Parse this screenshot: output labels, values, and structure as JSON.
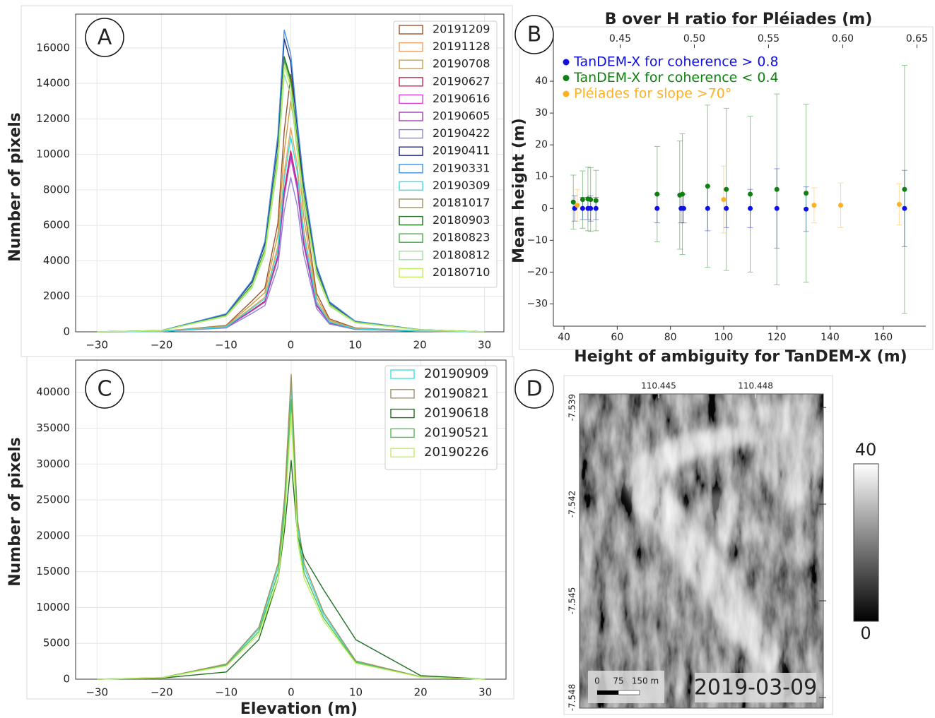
{
  "chart_data": [
    {
      "type": "line",
      "label": "A",
      "ylabel": "Number of pixels",
      "xlim": [
        -33.3,
        33
      ],
      "ylim": [
        0,
        17900
      ],
      "xticks": [
        {
          "value": -30,
          "label": "−30"
        },
        {
          "value": -20,
          "label": "−20"
        },
        {
          "value": -10,
          "label": "−10"
        },
        0,
        10,
        20,
        30
      ],
      "yticks": [
        0,
        2000,
        4000,
        6000,
        8000,
        10000,
        12000,
        14000,
        16000
      ],
      "grid": true,
      "legend": "upper right",
      "x": [
        -30,
        -20,
        -10,
        -6,
        -4,
        -2,
        -1,
        0,
        1,
        2,
        4,
        6,
        10,
        20,
        30
      ],
      "series": [
        {
          "name": "20191209",
          "color": "#a0522d",
          "values": [
            0,
            30,
            360,
            1740,
            2470,
            6090,
            11310,
            14500,
            11890,
            7250,
            2180,
            730,
            220,
            40,
            0
          ]
        },
        {
          "name": "20191128",
          "color": "#f0a060",
          "values": [
            0,
            20,
            290,
            1380,
            1960,
            4830,
            8970,
            11500,
            9430,
            5750,
            1730,
            580,
            170,
            30,
            0
          ]
        },
        {
          "name": "20190708",
          "color": "#c8a040",
          "values": [
            0,
            30,
            330,
            1560,
            2210,
            5460,
            10140,
            13000,
            10660,
            6500,
            1950,
            650,
            200,
            40,
            0
          ]
        },
        {
          "name": "20190627",
          "color": "#d62050",
          "values": [
            0,
            20,
            260,
            1220,
            1730,
            4280,
            7960,
            10200,
            8360,
            5100,
            1530,
            510,
            150,
            30,
            0
          ]
        },
        {
          "name": "20190616",
          "color": "#e040e0",
          "values": [
            0,
            20,
            250,
            1180,
            1670,
            4120,
            7640,
            9800,
            8040,
            4900,
            1470,
            490,
            150,
            30,
            0
          ]
        },
        {
          "name": "20190605",
          "color": "#a040b0",
          "values": [
            0,
            20,
            250,
            1200,
            1700,
            4200,
            7800,
            10000,
            8200,
            5000,
            1500,
            500,
            150,
            30,
            0
          ]
        },
        {
          "name": "20190422",
          "color": "#9080d8",
          "values": [
            0,
            20,
            220,
            1040,
            1480,
            3650,
            6790,
            8700,
            7130,
            4350,
            1310,
            440,
            130,
            30,
            0
          ]
        },
        {
          "name": "20190411",
          "color": "#202880",
          "values": [
            0,
            70,
            990,
            2810,
            4950,
            10730,
            16500,
            15180,
            11550,
            8250,
            3630,
            1650,
            580,
            120,
            0
          ]
        },
        {
          "name": "20190331",
          "color": "#4090e0",
          "values": [
            0,
            70,
            1020,
            2890,
            5100,
            11050,
            17000,
            15640,
            11900,
            8500,
            3740,
            1700,
            600,
            120,
            0
          ]
        },
        {
          "name": "20190309",
          "color": "#30e0e0",
          "values": [
            0,
            20,
            280,
            1320,
            1870,
            4620,
            8580,
            11000,
            9020,
            5500,
            1650,
            550,
            170,
            30,
            0
          ]
        },
        {
          "name": "20181017",
          "color": "#a09060",
          "values": [
            0,
            60,
            900,
            2550,
            4500,
            9750,
            15000,
            13800,
            10500,
            7500,
            3300,
            1500,
            530,
            110,
            0
          ]
        },
        {
          "name": "20180903",
          "color": "#207020",
          "values": [
            0,
            60,
            930,
            2640,
            4650,
            10080,
            15500,
            14260,
            10850,
            7750,
            3410,
            1550,
            540,
            110,
            0
          ]
        },
        {
          "name": "20180823",
          "color": "#40b040",
          "values": [
            0,
            60,
            920,
            2600,
            4590,
            9950,
            15300,
            14080,
            10710,
            7650,
            3370,
            1530,
            540,
            110,
            0
          ]
        },
        {
          "name": "20180812",
          "color": "#a0e0a0",
          "values": [
            0,
            60,
            870,
            2470,
            4350,
            9430,
            14500,
            13340,
            10150,
            7250,
            3190,
            1450,
            510,
            100,
            0
          ]
        },
        {
          "name": "20180710",
          "color": "#c0f060",
          "values": [
            0,
            60,
            900,
            2550,
            4500,
            9750,
            15000,
            13800,
            10500,
            7500,
            3300,
            1500,
            530,
            110,
            0
          ]
        }
      ]
    },
    {
      "type": "scatter",
      "label": "B",
      "x2label": "B over H ratio for Pléiades (m)",
      "xlabel": "Height of ambiguity for TanDEM-X (m)",
      "ylabel": "Mean height (m)",
      "xlim": [
        36,
        176
      ],
      "x2lim": [
        0.405,
        0.656
      ],
      "ylim": [
        -37,
        50
      ],
      "xticks": [
        40,
        60,
        80,
        100,
        120,
        140,
        160
      ],
      "x2ticks": [
        0.45,
        {
          "value": 0.5,
          "label": "0.50"
        },
        0.55,
        {
          "value": 0.6,
          "label": "0.60"
        },
        0.65
      ],
      "yticks": [
        {
          "value": -30,
          "label": "−30"
        },
        {
          "value": -20,
          "label": "−20"
        },
        {
          "value": -10,
          "label": "−10"
        },
        0,
        10,
        20,
        30,
        40
      ],
      "legend": "upper left",
      "series": [
        {
          "name": "TanDEM-X for coherence > 0.8",
          "color": "#1010e0",
          "x": [
            44,
            47,
            49,
            50,
            52,
            75,
            84,
            85,
            94,
            101,
            110,
            120,
            131,
            168
          ],
          "values": [
            0,
            0,
            0,
            0,
            0,
            0,
            0,
            0,
            0,
            0,
            0,
            0,
            -0.2,
            0
          ],
          "errors": [
            4,
            3.5,
            3.5,
            4,
            3.5,
            4.5,
            4.5,
            4.5,
            7,
            6,
            6,
            12.5,
            7,
            12
          ]
        },
        {
          "name": "TanDEM-X for coherence < 0.4",
          "color": "#108010",
          "x": [
            43.5,
            47,
            49,
            50,
            52,
            75,
            83.5,
            84.5,
            94,
            101,
            110,
            120,
            131,
            168
          ],
          "values": [
            2,
            2.8,
            3,
            2.8,
            2.5,
            4.5,
            4.2,
            4.5,
            7,
            6,
            4.5,
            6,
            4.8,
            6
          ],
          "errors": [
            8.5,
            9,
            10,
            10,
            9.5,
            15,
            17,
            19,
            25.5,
            25.5,
            24.5,
            30,
            28,
            39
          ]
        },
        {
          "name": "Pléiades for slope >70°",
          "color": "#ffb020",
          "x": [
            45,
            100,
            134,
            144,
            166
          ],
          "values": [
            1,
            2.8,
            1,
            1,
            1.3
          ],
          "errors": [
            5,
            10.5,
            5.5,
            7,
            6.5
          ]
        }
      ]
    },
    {
      "type": "line",
      "label": "C",
      "xlabel": "Elevation (m)",
      "ylabel": "Number of pixels",
      "xlim": [
        -33.3,
        33.2
      ],
      "ylim": [
        0,
        44500
      ],
      "xticks": [
        {
          "value": -30,
          "label": "−30"
        },
        {
          "value": -20,
          "label": "−20"
        },
        {
          "value": -10,
          "label": "−10"
        },
        0,
        10,
        20,
        30
      ],
      "yticks": [
        0,
        5000,
        10000,
        15000,
        20000,
        25000,
        30000,
        35000,
        40000
      ],
      "grid": true,
      "legend": "upper right",
      "x": [
        -30,
        -20,
        -10,
        -5,
        -2,
        -1,
        0,
        1,
        2,
        5,
        10,
        20,
        30
      ],
      "series": [
        {
          "name": "20190909",
          "color": "#40e0e0",
          "values": [
            0,
            200,
            2050,
            6970,
            15580,
            24600,
            41000,
            21320,
            15580,
            9020,
            2460,
            330,
            0
          ]
        },
        {
          "name": "20190821",
          "color": "#a09060",
          "values": [
            0,
            210,
            2130,
            7230,
            16150,
            25500,
            42500,
            22100,
            16150,
            9350,
            2550,
            340,
            0
          ]
        },
        {
          "name": "20190618",
          "color": "#207020",
          "values": [
            0,
            150,
            1000,
            5500,
            14000,
            21000,
            30500,
            20000,
            17000,
            12500,
            5500,
            500,
            0
          ]
        },
        {
          "name": "20190521",
          "color": "#50c050",
          "values": [
            0,
            200,
            1950,
            6630,
            14820,
            23400,
            39000,
            20280,
            14820,
            8580,
            2340,
            310,
            0
          ]
        },
        {
          "name": "20190226",
          "color": "#c0f060",
          "values": [
            0,
            190,
            1850,
            6290,
            14060,
            22200,
            37000,
            19240,
            14060,
            8140,
            2220,
            300,
            0
          ]
        }
      ]
    },
    {
      "type": "image",
      "label": "D",
      "date": "2019-03-09",
      "xlim": [
        110.44255,
        110.4501
      ],
      "ylim": [
        -7.54833,
        -7.53858
      ],
      "xticks": [
        110.445,
        110.448
      ],
      "yticks": [
        -7.539,
        -7.542,
        -7.545,
        -7.548
      ],
      "scale_bar": [
        "0",
        "75",
        "150 m"
      ],
      "colorbar": {
        "lim": [
          0,
          40
        ]
      }
    }
  ]
}
